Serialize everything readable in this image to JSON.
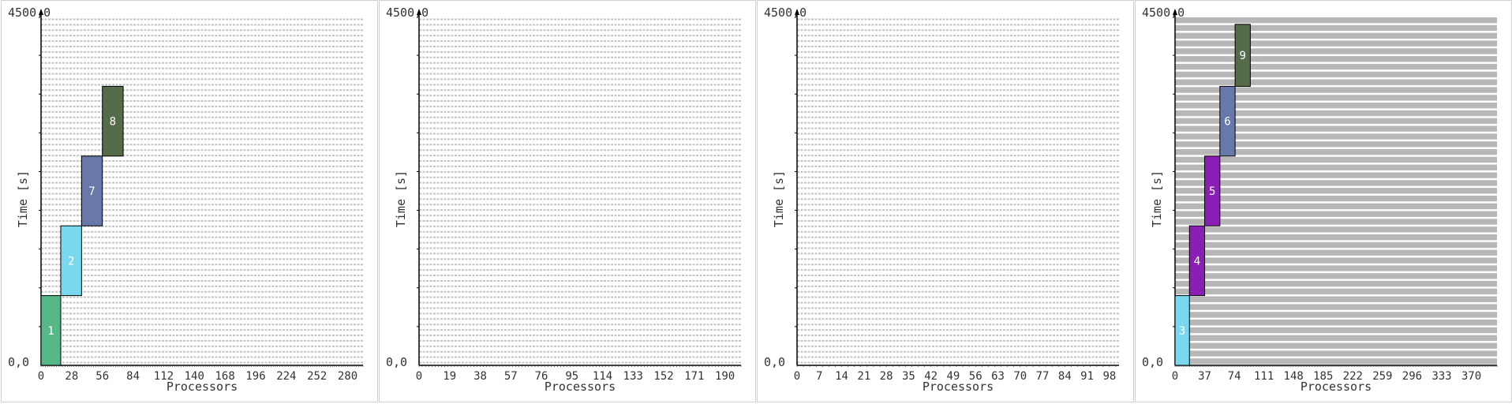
{
  "chart_data": [
    {
      "type": "gantt",
      "xlabel": "Processors",
      "ylabel": "Time [s]",
      "ymin_label": "0,0",
      "ymax_label": "4500,0",
      "ylim": [
        0,
        4500
      ],
      "xlim": [
        0,
        294
      ],
      "xticks": [
        0,
        28,
        56,
        84,
        112,
        140,
        168,
        196,
        224,
        252,
        280
      ],
      "rows": 64,
      "stripes_solid": false,
      "jobs": [
        {
          "label": "1",
          "x0": 0,
          "x1": 18,
          "t0": 0,
          "t1": 900,
          "color": "#55b886"
        },
        {
          "label": "2",
          "x0": 18,
          "x1": 37,
          "t0": 900,
          "t1": 1800,
          "color": "#79d8ef"
        },
        {
          "label": "7",
          "x0": 37,
          "x1": 56,
          "t0": 1800,
          "t1": 2700,
          "color": "#6878a8"
        },
        {
          "label": "8",
          "x0": 56,
          "x1": 75,
          "t0": 2700,
          "t1": 3600,
          "color": "#556b4a"
        }
      ]
    },
    {
      "type": "gantt",
      "xlabel": "Processors",
      "ylabel": "Time [s]",
      "ymin_label": "0,0",
      "ymax_label": "4500,0",
      "ylim": [
        0,
        4500
      ],
      "xlim": [
        0,
        200
      ],
      "xticks": [
        0,
        19,
        38,
        57,
        76,
        95,
        114,
        133,
        152,
        171,
        190
      ],
      "rows": 64,
      "stripes_solid": false,
      "jobs": []
    },
    {
      "type": "gantt",
      "xlabel": "Processors",
      "ylabel": "Time [s]",
      "ymin_label": "0,0",
      "ymax_label": "4500,0",
      "ylim": [
        0,
        4500
      ],
      "xlim": [
        0,
        101
      ],
      "xticks": [
        0,
        7,
        14,
        21,
        28,
        35,
        42,
        49,
        56,
        63,
        70,
        77,
        84,
        91,
        98
      ],
      "rows": 64,
      "stripes_solid": false,
      "jobs": []
    },
    {
      "type": "gantt",
      "xlabel": "Processors",
      "ylabel": "Time [s]",
      "ymin_label": "0,0",
      "ymax_label": "4500,0",
      "ylim": [
        0,
        4500
      ],
      "xlim": [
        0,
        402
      ],
      "xticks": [
        0,
        37,
        74,
        111,
        148,
        185,
        222,
        259,
        296,
        333,
        370
      ],
      "rows": 45,
      "stripes_solid": true,
      "jobs": [
        {
          "label": "3",
          "x0": 0,
          "x1": 18,
          "t0": 0,
          "t1": 900,
          "color": "#79d8ef"
        },
        {
          "label": "4",
          "x0": 18,
          "x1": 37,
          "t0": 900,
          "t1": 1800,
          "color": "#8a1fb5"
        },
        {
          "label": "5",
          "x0": 37,
          "x1": 56,
          "t0": 1800,
          "t1": 2700,
          "color": "#8a1fb5"
        },
        {
          "label": "6",
          "x0": 56,
          "x1": 75,
          "t0": 2700,
          "t1": 3600,
          "color": "#6878a8"
        },
        {
          "label": "9",
          "x0": 75,
          "x1": 94,
          "t0": 3600,
          "t1": 4400,
          "color": "#556b4a"
        }
      ]
    }
  ]
}
